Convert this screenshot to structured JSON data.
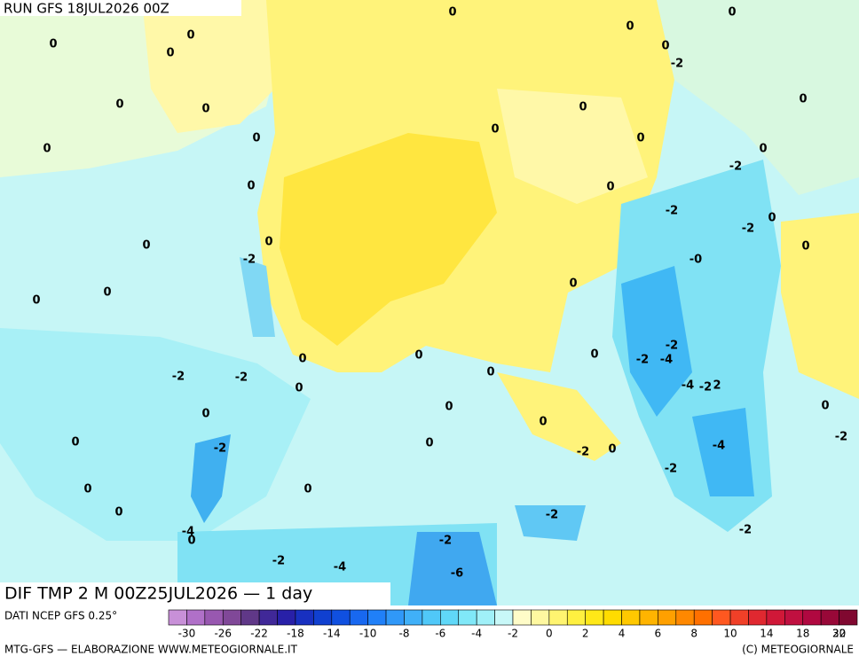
{
  "header": {
    "run": "RUN GFS 18JUL2026 00Z"
  },
  "map": {
    "title": "DIF TMP 2 M 00Z25JUL2026 — 1 day",
    "contour_labels": [
      "0",
      "0",
      "0",
      "0",
      "0",
      "0",
      "0",
      "-2",
      "0",
      "0",
      "0",
      "0",
      "0",
      "0",
      "0",
      "0",
      "0",
      "-2",
      "0",
      "0",
      "-2",
      "0",
      "-2",
      "0",
      "0",
      "0",
      "-2",
      "-0",
      "0",
      "0",
      "0",
      "-2",
      "-2",
      "-4",
      "0",
      "0",
      "0",
      "0",
      "-2",
      "-2",
      "0",
      "-4",
      "-2",
      "2",
      "0",
      "0",
      "0",
      "0",
      "-2",
      "0",
      "0",
      "-4",
      "-2",
      "-2",
      "0",
      "-2",
      "0",
      "0",
      "0",
      "-2",
      "-4",
      "0",
      "-2",
      "-2",
      "-2",
      "-4",
      "-6"
    ]
  },
  "legend": {
    "source": "DATI NCEP GFS 0.25°",
    "colors": [
      "#c890d8",
      "#b070c8",
      "#9858b0",
      "#804898",
      "#603888",
      "#402898",
      "#2820a8",
      "#1830c0",
      "#1040d0",
      "#1050e0",
      "#1868f0",
      "#2080f8",
      "#3098f8",
      "#40b0f8",
      "#50c8f8",
      "#60d8f8",
      "#80e8f8",
      "#a0f0f8",
      "#c8f8f8",
      "#fffcc8",
      "#fff8a0",
      "#fff470",
      "#fff040",
      "#ffe818",
      "#ffdc00",
      "#ffc800",
      "#ffb400",
      "#ffa000",
      "#ff8800",
      "#ff7000",
      "#ff5820",
      "#f04028",
      "#e02830",
      "#d01838",
      "#c01040",
      "#b00840",
      "#980838",
      "#800830"
    ],
    "ticks": [
      -30,
      -26,
      -22,
      -18,
      -14,
      -10,
      -8,
      -6,
      -4,
      -2,
      0,
      2,
      4,
      6,
      8,
      10,
      14,
      18,
      22,
      30
    ]
  },
  "footer": {
    "left": "MTG-GFS — ELABORAZIONE WWW.METEOGIORNALE.IT",
    "right": "(C) METEOGIORNALE"
  }
}
